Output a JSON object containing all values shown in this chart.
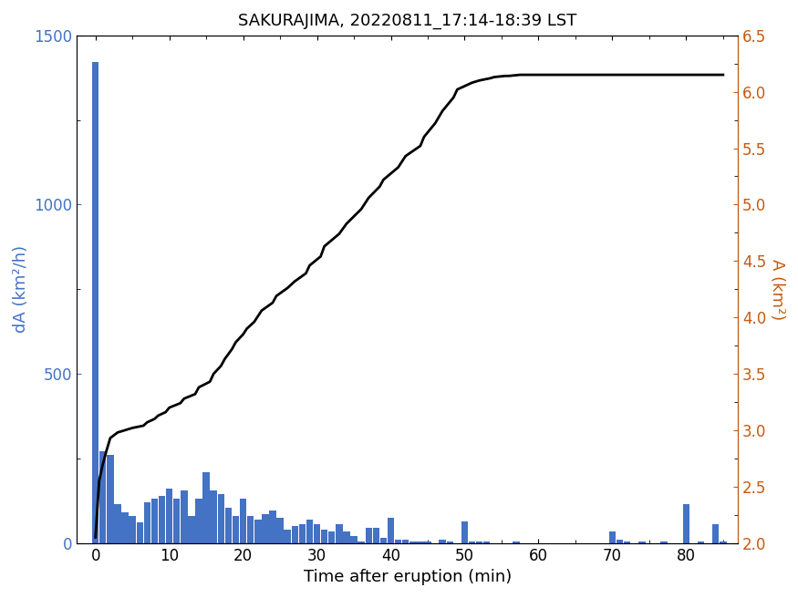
{
  "title": "SAKURAJIMA, 20220811_17:14-18:39 LST",
  "xlabel": "Time after eruption (min)",
  "ylabel_left": "dA (km²/h)",
  "ylabel_right": "A (km²)",
  "bar_color": "#4472C4",
  "line_color": "#000000",
  "left_color": "#4472C4",
  "right_color": "#C55A11",
  "xlim": [
    -2.5,
    87
  ],
  "ylim_left": [
    0,
    1500
  ],
  "ylim_right": [
    2.0,
    6.5
  ],
  "xticks": [
    0,
    10,
    20,
    30,
    40,
    50,
    60,
    70,
    80
  ],
  "yticks_left": [
    0,
    500,
    1000,
    1500
  ],
  "yticks_right": [
    2.0,
    2.5,
    3.0,
    3.5,
    4.0,
    4.5,
    5.0,
    5.5,
    6.0,
    6.5
  ],
  "bar_positions": [
    0,
    1,
    2,
    3,
    4,
    5,
    6,
    7,
    8,
    9,
    10,
    11,
    12,
    13,
    14,
    15,
    16,
    17,
    18,
    19,
    20,
    21,
    22,
    23,
    24,
    25,
    26,
    27,
    28,
    29,
    30,
    31,
    32,
    33,
    34,
    35,
    36,
    37,
    38,
    39,
    40,
    41,
    42,
    43,
    44,
    45,
    46,
    47,
    48,
    49,
    50,
    51,
    52,
    53,
    54,
    55,
    56,
    57,
    58,
    59,
    60,
    61,
    62,
    63,
    64,
    65,
    66,
    67,
    68,
    69,
    70,
    71,
    72,
    73,
    74,
    75,
    76,
    77,
    78,
    79,
    80,
    81,
    82,
    83,
    84,
    85
  ],
  "bar_heights": [
    1420,
    270,
    260,
    115,
    90,
    80,
    60,
    120,
    130,
    140,
    160,
    130,
    155,
    80,
    130,
    210,
    155,
    145,
    105,
    80,
    130,
    80,
    70,
    85,
    95,
    75,
    40,
    50,
    55,
    70,
    55,
    40,
    35,
    55,
    35,
    20,
    5,
    45,
    45,
    15,
    75,
    10,
    10,
    5,
    5,
    5,
    0,
    10,
    5,
    0,
    65,
    5,
    5,
    5,
    0,
    0,
    0,
    5,
    0,
    0,
    0,
    0,
    0,
    0,
    0,
    0,
    0,
    0,
    0,
    0,
    35,
    10,
    5,
    0,
    5,
    0,
    0,
    5,
    0,
    0,
    115,
    0,
    5,
    0,
    55,
    5
  ],
  "line_x": [
    0,
    0.5,
    1.0,
    1.5,
    2.0,
    3.0,
    4.0,
    5.0,
    6.5,
    7.0,
    8.0,
    8.5,
    9.5,
    10.0,
    11.5,
    12.0,
    13.5,
    14.0,
    15.5,
    16.0,
    17.0,
    17.5,
    18.5,
    19.0,
    20.0,
    20.5,
    21.5,
    22.0,
    22.5,
    24.0,
    24.5,
    26.0,
    27.0,
    28.5,
    29.0,
    30.5,
    31.0,
    33.0,
    34.0,
    36.0,
    37.0,
    38.5,
    39.0,
    41.0,
    42.0,
    44.0,
    44.5,
    46.0,
    47.0,
    48.5,
    49.0,
    51.0,
    52.0,
    53.5,
    54.0,
    55.5,
    56.0,
    57.5,
    58.0,
    85.0
  ],
  "line_y": [
    2.05,
    2.55,
    2.7,
    2.82,
    2.93,
    2.98,
    3.0,
    3.02,
    3.04,
    3.07,
    3.1,
    3.13,
    3.16,
    3.2,
    3.24,
    3.28,
    3.32,
    3.38,
    3.43,
    3.5,
    3.57,
    3.63,
    3.72,
    3.78,
    3.85,
    3.9,
    3.96,
    4.01,
    4.06,
    4.13,
    4.19,
    4.26,
    4.32,
    4.39,
    4.46,
    4.54,
    4.63,
    4.74,
    4.83,
    4.96,
    5.06,
    5.16,
    5.22,
    5.33,
    5.43,
    5.52,
    5.6,
    5.72,
    5.83,
    5.95,
    6.02,
    6.08,
    6.1,
    6.12,
    6.13,
    6.14,
    6.14,
    6.15,
    6.15,
    6.15
  ]
}
